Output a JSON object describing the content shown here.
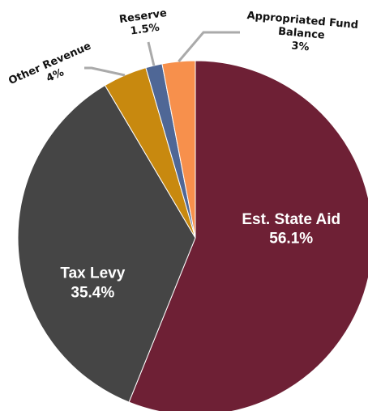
{
  "chart_data": {
    "type": "pie",
    "title": "",
    "start": "top, clockwise",
    "slices": [
      {
        "name": "Est. State Aid",
        "value": 56.1,
        "value_label": "56.1%",
        "color": "#6e2035",
        "label_position": "inside"
      },
      {
        "name": "Tax Levy",
        "value": 35.4,
        "value_label": "35.4%",
        "color": "#454545",
        "label_position": "inside"
      },
      {
        "name": "Other Revenue",
        "value": 4,
        "value_label": "4%",
        "color": "#c8890f",
        "label_position": "outside"
      },
      {
        "name": "Reserve",
        "value": 1.5,
        "value_label": "1.5%",
        "color": "#4f6796",
        "label_position": "outside"
      },
      {
        "name": "Appropriated Fund Balance",
        "value": 3,
        "value_label": "3%",
        "color": "#f7904c",
        "label_position": "outside"
      }
    ],
    "leader_line_color": "#aaaaaa"
  }
}
